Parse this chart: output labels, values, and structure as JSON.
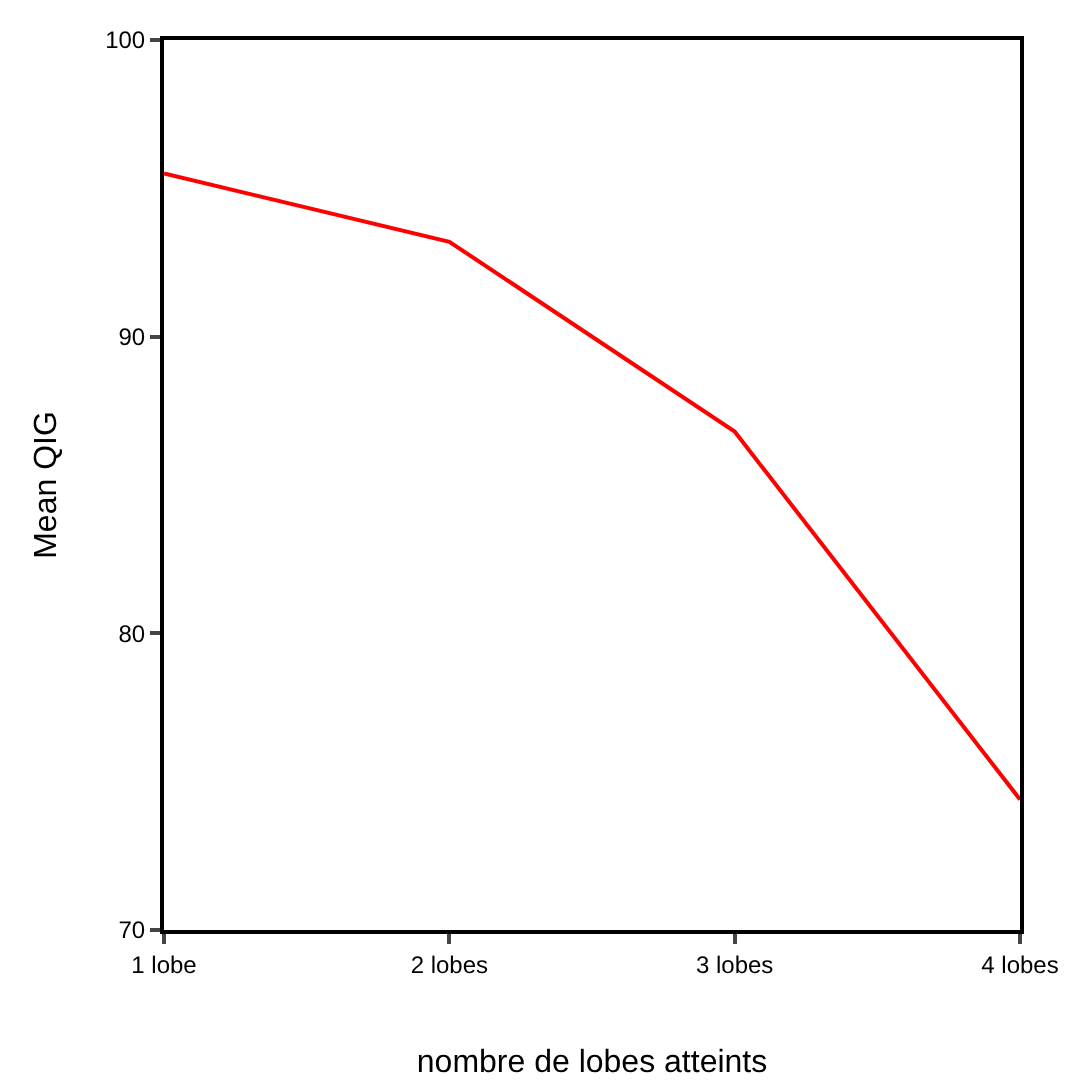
{
  "chart_data": {
    "type": "line",
    "xlabel": "nombre de lobes atteints",
    "ylabel": "Mean QIG",
    "categories": [
      "1 lobe",
      "2 lobes",
      "3 lobes",
      "4 lobes"
    ],
    "series": [
      {
        "color": "#ff0000",
        "values": [
          95.5,
          93.2,
          86.8,
          74.4
        ]
      }
    ],
    "ylim": [
      70,
      100
    ],
    "yticks": [
      70,
      80,
      90,
      100
    ],
    "grid": false,
    "marker": "none",
    "line_style": "solid"
  }
}
